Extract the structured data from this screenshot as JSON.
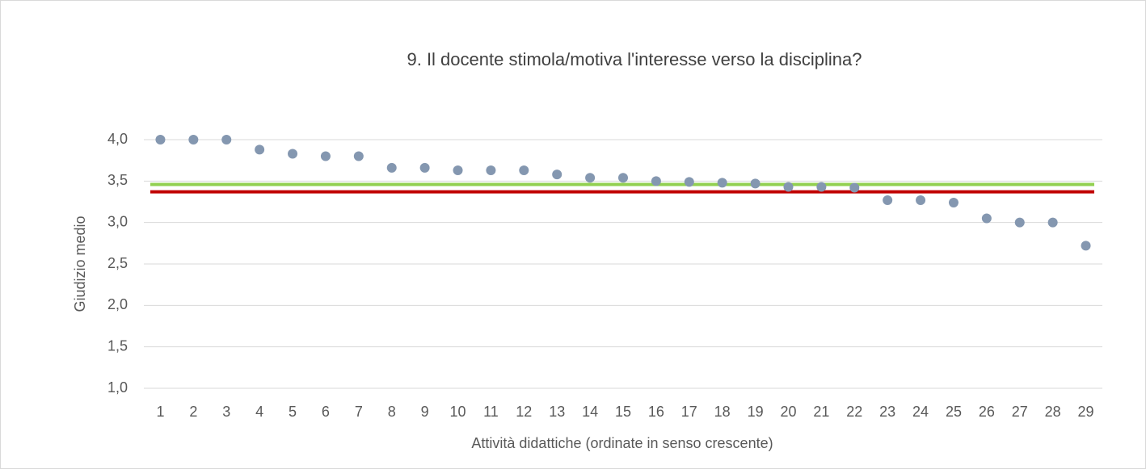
{
  "chart_data": {
    "type": "scatter",
    "title": "9. Il docente stimola/motiva l'interesse verso la disciplina?",
    "x_label": "Attività didattiche (ordinate in senso crescente)",
    "y_label": "Giudizio medio",
    "categories": [
      "1",
      "2",
      "3",
      "4",
      "5",
      "6",
      "7",
      "8",
      "9",
      "10",
      "11",
      "12",
      "13",
      "14",
      "15",
      "16",
      "17",
      "18",
      "19",
      "20",
      "21",
      "22",
      "23",
      "24",
      "25",
      "26",
      "27",
      "28",
      "29"
    ],
    "values": [
      4.0,
      4.0,
      4.0,
      3.88,
      3.83,
      3.8,
      3.8,
      3.66,
      3.66,
      3.63,
      3.63,
      3.63,
      3.58,
      3.54,
      3.54,
      3.5,
      3.49,
      3.48,
      3.47,
      3.43,
      3.43,
      3.42,
      3.27,
      3.27,
      3.24,
      3.05,
      3.0,
      3.0,
      2.72
    ],
    "color": "#8497b0",
    "reference_lines": [
      {
        "value": 3.46,
        "color": "#92d050"
      },
      {
        "value": 3.37,
        "color": "#c00000"
      }
    ],
    "ylim": [
      1.0,
      4.0
    ],
    "yticks": [
      {
        "value": 1.0,
        "label": "1,0"
      },
      {
        "value": 1.5,
        "label": "1,5"
      },
      {
        "value": 2.0,
        "label": "2,0"
      },
      {
        "value": 2.5,
        "label": "2,5"
      },
      {
        "value": 3.0,
        "label": "3,0"
      },
      {
        "value": 3.5,
        "label": "3,5"
      },
      {
        "value": 4.0,
        "label": "4,0"
      }
    ],
    "grid": true
  }
}
